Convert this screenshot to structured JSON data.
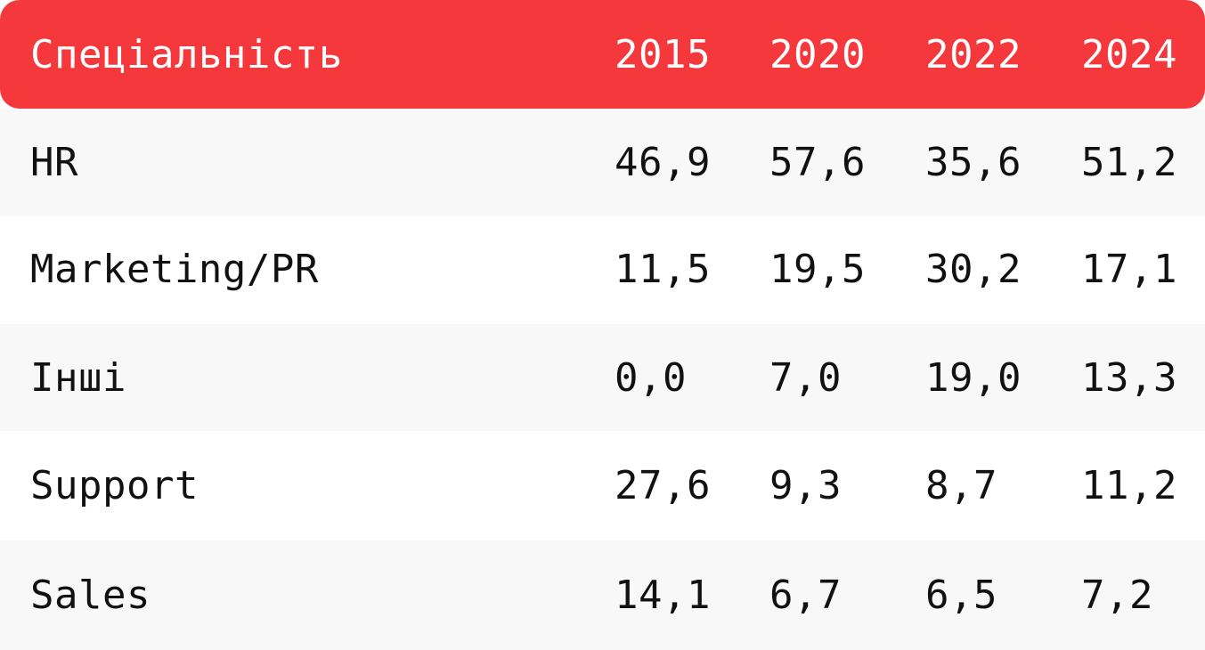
{
  "colors": {
    "header_bg": "#f4383c",
    "header_text": "#ffffff",
    "row_shaded": "#f8f8f8",
    "row_plain": "#ffffff",
    "text": "#111111"
  },
  "chart_data": {
    "type": "table",
    "columns": [
      "Спеціальність",
      "2015",
      "2020",
      "2022",
      "2024"
    ],
    "rows": [
      [
        "HR",
        "46,9",
        "57,6",
        "35,6",
        "51,2"
      ],
      [
        "Marketing/PR",
        "11,5",
        "19,5",
        "30,2",
        "17,1"
      ],
      [
        "Інші",
        "0,0",
        "7,0",
        "19,0",
        "13,3"
      ],
      [
        "Support",
        "27,6",
        "9,3",
        "8,7",
        "11,2"
      ],
      [
        "Sales",
        "14,1",
        "6,7",
        "6,5",
        "7,2"
      ]
    ]
  }
}
